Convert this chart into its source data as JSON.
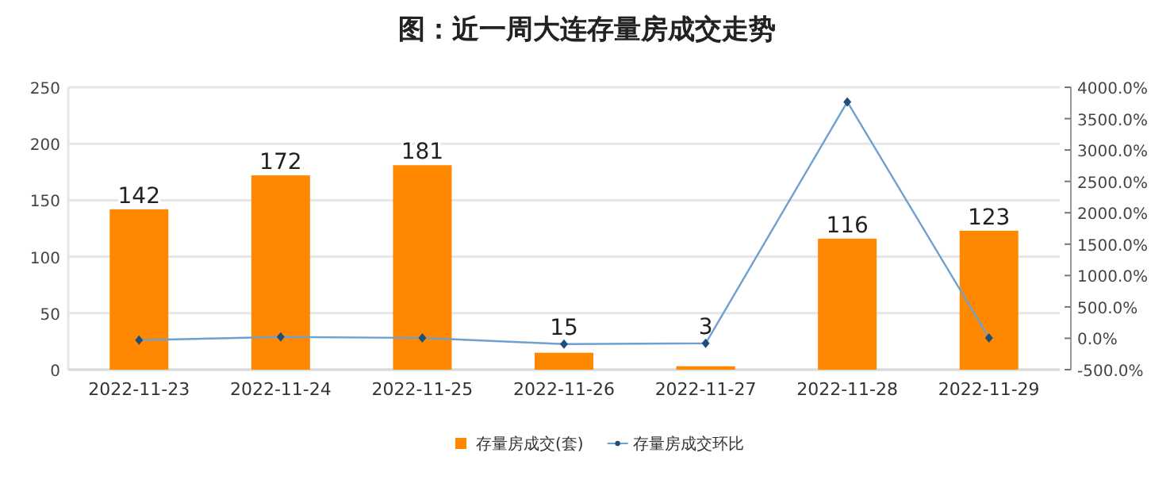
{
  "chart_data": {
    "type": "bar",
    "title": "图：近一周大连存量房成交走势",
    "categories": [
      "2022-11-23",
      "2022-11-24",
      "2022-11-25",
      "2022-11-26",
      "2022-11-27",
      "2022-11-28",
      "2022-11-29"
    ],
    "series": [
      {
        "name": "存量房成交(套)",
        "color": "#ff8800",
        "values": [
          142,
          172,
          181,
          15,
          3,
          116,
          123
        ],
        "value_labels": [
          "142",
          "172",
          "181",
          "15",
          "3",
          "116",
          "123"
        ]
      },
      {
        "name": "存量房成交环比",
        "type": "line",
        "axis": "y2",
        "color": "#6fa0d0",
        "marker": "diamond",
        "values": [
          -30,
          21,
          5,
          -92,
          -80,
          3767,
          6
        ]
      }
    ],
    "ylim": [
      0,
      250
    ],
    "yticks": [
      0,
      50,
      100,
      150,
      200,
      250
    ],
    "y2lim": [
      -500,
      4000
    ],
    "y2ticks": [
      {
        "value": -500,
        "label": "-500.0%"
      },
      {
        "value": 0,
        "label": "0.0%"
      },
      {
        "value": 500,
        "label": "500.0%"
      },
      {
        "value": 1000,
        "label": "1000.0%"
      },
      {
        "value": 1500,
        "label": "1500.0%"
      },
      {
        "value": 2000,
        "label": "2000.0%"
      },
      {
        "value": 2500,
        "label": "2500.0%"
      },
      {
        "value": 3000,
        "label": "3000.0%"
      },
      {
        "value": 3500,
        "label": "3500.0%"
      },
      {
        "value": 4000,
        "label": "4000.0%"
      }
    ],
    "grid": "y",
    "legend": "bottom"
  }
}
